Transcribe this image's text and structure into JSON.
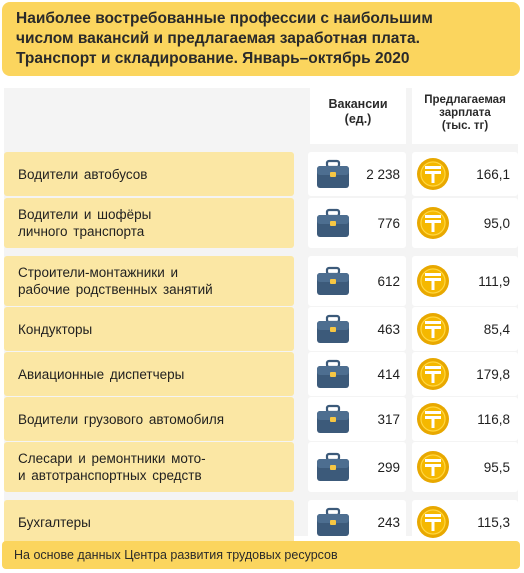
{
  "title": {
    "line1": "Наиболее востребованные профессии с наибольшим",
    "line2": "числом вакансий и предлагаемая заработная плата.",
    "line3": "Транспорт и складирование. Январь–октябрь 2020"
  },
  "headers": {
    "vacancies": [
      "Вакансии",
      "(ед.)"
    ],
    "salary": [
      "Предлагаемая",
      "зарплата",
      "(тыс. тг)"
    ]
  },
  "rows": [
    {
      "name": [
        "Водители автобусов"
      ],
      "vacancies": "2 238",
      "salary": "166,1"
    },
    {
      "name": [
        "Водители и шофёры",
        "личного транспорта"
      ],
      "vacancies": "776",
      "salary": "95,0"
    },
    {
      "name": [
        "Строители-монтажники и",
        "рабочие родственных занятий"
      ],
      "vacancies": "612",
      "salary": "111,9"
    },
    {
      "name": [
        "Кондукторы"
      ],
      "vacancies": "463",
      "salary": "85,4"
    },
    {
      "name": [
        "Авиационные диспетчеры"
      ],
      "vacancies": "414",
      "salary": "179,8"
    },
    {
      "name": [
        "Водители грузового автомобиля"
      ],
      "vacancies": "317",
      "salary": "116,8"
    },
    {
      "name": [
        "Слесари и ремонтники мото-",
        "и автотранспортных средств"
      ],
      "vacancies": "299",
      "salary": "95,5"
    },
    {
      "name": [
        "Бухгалтеры"
      ],
      "vacancies": "243",
      "salary": "115,3"
    }
  ],
  "footer": "На основе данных Центра развития трудовых ресурсов",
  "icons": {
    "vacancy": "briefcase-icon",
    "salary": "tenge-coin-icon"
  },
  "colors": {
    "accent": "#fbd55e",
    "row": "#fbe7a4",
    "briefcase": "#3c5a7a",
    "coin": "#f5b800"
  }
}
